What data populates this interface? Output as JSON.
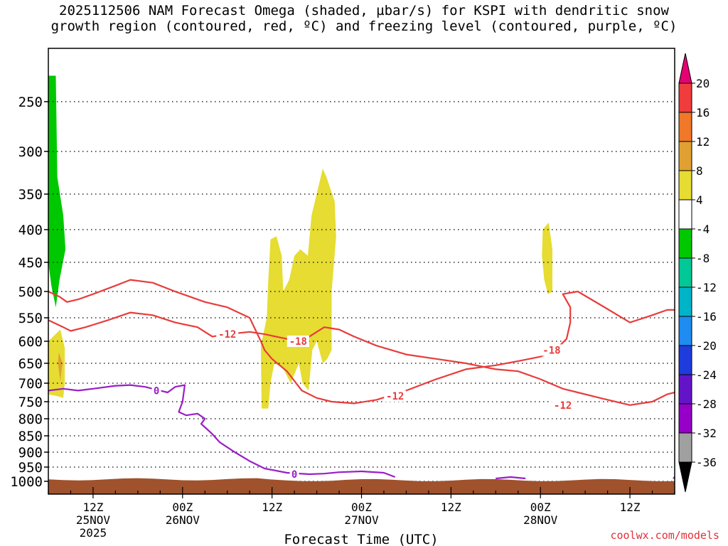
{
  "chart_data": {
    "type": "heatmap",
    "title_line1": "2025112506 NAM Forecast Omega (shaded, µbar/s) for KSPI with dendritic snow",
    "title_line2": "growth region (contoured, red, ºC) and freezing level (contoured, purple, ºC)",
    "xlabel": "Forecast Time (UTC)",
    "credit": "coolwx.com/models",
    "y_axis": {
      "ticks": [
        250,
        300,
        350,
        400,
        450,
        500,
        550,
        600,
        650,
        700,
        750,
        800,
        850,
        900,
        950,
        1000
      ],
      "range": [
        200,
        1030
      ]
    },
    "x_axis": {
      "range": [
        0,
        84
      ],
      "ticks": [
        {
          "h": 6,
          "line1": "12Z",
          "line2": "25NOV",
          "line3": "2025"
        },
        {
          "h": 18,
          "line1": "00Z",
          "line2": "26NOV",
          "line3": ""
        },
        {
          "h": 30,
          "line1": "12Z",
          "line2": "",
          "line3": ""
        },
        {
          "h": 42,
          "line1": "00Z",
          "line2": "27NOV",
          "line3": ""
        },
        {
          "h": 54,
          "line1": "12Z",
          "line2": "",
          "line3": ""
        },
        {
          "h": 66,
          "line1": "00Z",
          "line2": "28NOV",
          "line3": ""
        },
        {
          "h": 78,
          "line1": "12Z",
          "line2": "",
          "line3": ""
        }
      ]
    },
    "colorbar": {
      "labels": [
        "20",
        "16",
        "12",
        "8",
        "4",
        "-4",
        "-8",
        "-12",
        "-16",
        "-20",
        "-24",
        "-28",
        "-32",
        "-36"
      ],
      "colors": [
        "#e60073",
        "#f03c3c",
        "#f07828",
        "#e1a032",
        "#e6dc32",
        "#ffffff",
        "#00c800",
        "#00c896",
        "#00b4c8",
        "#1e8cf0",
        "#1e3cdc",
        "#6414c8",
        "#9600c8",
        "#a0a0a0",
        "#000000"
      ]
    },
    "regions": [
      {
        "color": "#00c800",
        "points": [
          [
            0,
            225
          ],
          [
            1,
            225
          ],
          [
            1.2,
            330
          ],
          [
            2,
            380
          ],
          [
            2.3,
            430
          ],
          [
            1.5,
            480
          ],
          [
            1,
            530
          ],
          [
            0.4,
            490
          ],
          [
            0,
            450
          ]
        ]
      },
      {
        "color": "#e6dc32",
        "points": [
          [
            0,
            600
          ],
          [
            1.6,
            575
          ],
          [
            2.2,
            615
          ],
          [
            2.2,
            700
          ],
          [
            2,
            740
          ],
          [
            1.2,
            735
          ],
          [
            0,
            730
          ]
        ]
      },
      {
        "color": "#e1a032",
        "points": [
          [
            1.4,
            625
          ],
          [
            1.9,
            650
          ],
          [
            1.6,
            695
          ],
          [
            1.3,
            650
          ]
        ]
      },
      {
        "color": "#e6dc32",
        "points": [
          [
            28.5,
            610
          ],
          [
            29.3,
            550
          ],
          [
            29.5,
            480
          ],
          [
            29.8,
            415
          ],
          [
            30.6,
            410
          ],
          [
            31.3,
            440
          ],
          [
            31.5,
            500
          ],
          [
            32.3,
            480
          ],
          [
            33,
            440
          ],
          [
            33.8,
            430
          ],
          [
            34.8,
            440
          ],
          [
            35.3,
            380
          ],
          [
            36.8,
            320
          ],
          [
            37.3,
            330
          ],
          [
            38.4,
            360
          ],
          [
            38.6,
            410
          ],
          [
            38,
            500
          ],
          [
            38,
            620
          ],
          [
            37.4,
            640
          ],
          [
            36.8,
            650
          ],
          [
            36,
            600
          ],
          [
            35.4,
            620
          ],
          [
            34.9,
            720
          ],
          [
            34.1,
            700
          ],
          [
            33.6,
            650
          ],
          [
            32.5,
            700
          ],
          [
            31.4,
            660
          ],
          [
            30.3,
            650
          ],
          [
            29.8,
            700
          ],
          [
            29.5,
            770
          ],
          [
            28.6,
            770
          ]
        ]
      },
      {
        "color": "#e6dc32",
        "points": [
          [
            66.3,
            400
          ],
          [
            67.1,
            390
          ],
          [
            67.6,
            430
          ],
          [
            67.6,
            500
          ],
          [
            67,
            505
          ],
          [
            66.5,
            480
          ],
          [
            66.2,
            440
          ]
        ]
      }
    ],
    "contours": [
      {
        "color": "#e83c3c",
        "label": "-18",
        "points": [
          [
            0,
            500
          ],
          [
            1.5,
            510
          ],
          [
            2.5,
            520
          ],
          [
            4,
            515
          ],
          [
            6,
            505
          ],
          [
            9,
            490
          ],
          [
            11,
            480
          ],
          [
            14,
            485
          ],
          [
            17,
            500
          ],
          [
            21,
            520
          ],
          [
            24,
            530
          ],
          [
            27,
            550
          ],
          [
            28.5,
            600
          ],
          [
            29,
            620
          ],
          [
            30,
            640
          ],
          [
            32,
            670
          ],
          [
            34,
            720
          ],
          [
            36,
            740
          ],
          [
            38,
            750
          ],
          [
            41,
            755
          ],
          [
            44,
            745
          ],
          [
            48,
            720
          ],
          [
            52,
            690
          ],
          [
            56,
            665
          ],
          [
            60,
            655
          ],
          [
            63,
            645
          ],
          [
            66,
            635
          ],
          [
            68,
            620
          ],
          [
            69.5,
            595
          ],
          [
            70,
            560
          ],
          [
            70,
            530
          ],
          [
            69,
            505
          ],
          [
            71,
            500
          ],
          [
            74,
            525
          ],
          [
            78,
            560
          ],
          [
            81,
            545
          ],
          [
            83,
            535
          ],
          [
            84,
            535
          ]
        ],
        "labels": [
          {
            "x": 33.5,
            "y": 600
          },
          {
            "x": 67.5,
            "y": 620
          }
        ]
      },
      {
        "color": "#e83c3c",
        "label": "-12",
        "points": [
          [
            0,
            555
          ],
          [
            2,
            570
          ],
          [
            3,
            578
          ],
          [
            5,
            570
          ],
          [
            8,
            555
          ],
          [
            11,
            540
          ],
          [
            14,
            545
          ],
          [
            17,
            560
          ],
          [
            20,
            570
          ],
          [
            22,
            590
          ],
          [
            24,
            585
          ],
          [
            27,
            580
          ],
          [
            29,
            585
          ],
          [
            32,
            595
          ],
          [
            35,
            590
          ],
          [
            37,
            570
          ],
          [
            39,
            575
          ],
          [
            41,
            590
          ],
          [
            44,
            610
          ],
          [
            48,
            630
          ],
          [
            52,
            640
          ],
          [
            56,
            650
          ],
          [
            60,
            665
          ],
          [
            63,
            670
          ],
          [
            66,
            690
          ],
          [
            69,
            715
          ],
          [
            71,
            725
          ],
          [
            74,
            740
          ],
          [
            78,
            760
          ],
          [
            81,
            750
          ],
          [
            83,
            730
          ],
          [
            84,
            725
          ]
        ],
        "labels": [
          {
            "x": 24,
            "y": 585
          },
          {
            "x": 46.5,
            "y": 735
          },
          {
            "x": 69,
            "y": 760
          }
        ]
      },
      {
        "color": "#9a1ec8",
        "label": "0",
        "points": [
          [
            0,
            720
          ],
          [
            2,
            715
          ],
          [
            4,
            720
          ],
          [
            6,
            715
          ],
          [
            9,
            707
          ],
          [
            11,
            705
          ],
          [
            13,
            710
          ],
          [
            15,
            720
          ],
          [
            16,
            725
          ],
          [
            17,
            710
          ],
          [
            18.3,
            705
          ],
          [
            18,
            750
          ],
          [
            17.5,
            780
          ],
          [
            18.5,
            790
          ],
          [
            20,
            785
          ],
          [
            21,
            800
          ],
          [
            20.5,
            815
          ],
          [
            21,
            825
          ],
          [
            22,
            845
          ],
          [
            23,
            870
          ],
          [
            25,
            900
          ],
          [
            27,
            930
          ],
          [
            29,
            955
          ],
          [
            32,
            970
          ],
          [
            35,
            975
          ],
          [
            37,
            973
          ],
          [
            39,
            968
          ],
          [
            42,
            965
          ],
          [
            45,
            970
          ],
          [
            46.5,
            985
          ]
        ],
        "labels": [
          {
            "x": 14.5,
            "y": 720
          },
          {
            "x": 33,
            "y": 975
          }
        ]
      },
      {
        "color": "#9a1ec8",
        "label": "",
        "points": [
          [
            60,
            990
          ],
          [
            62,
            985
          ],
          [
            64,
            990
          ]
        ],
        "labels": []
      },
      {
        "color": "#9a1ec8",
        "label": "",
        "points": [
          [
            83.8,
            990
          ],
          [
            84,
            985
          ]
        ],
        "labels": []
      }
    ],
    "ground": {
      "color": "#a0522d",
      "level": 1000
    }
  }
}
